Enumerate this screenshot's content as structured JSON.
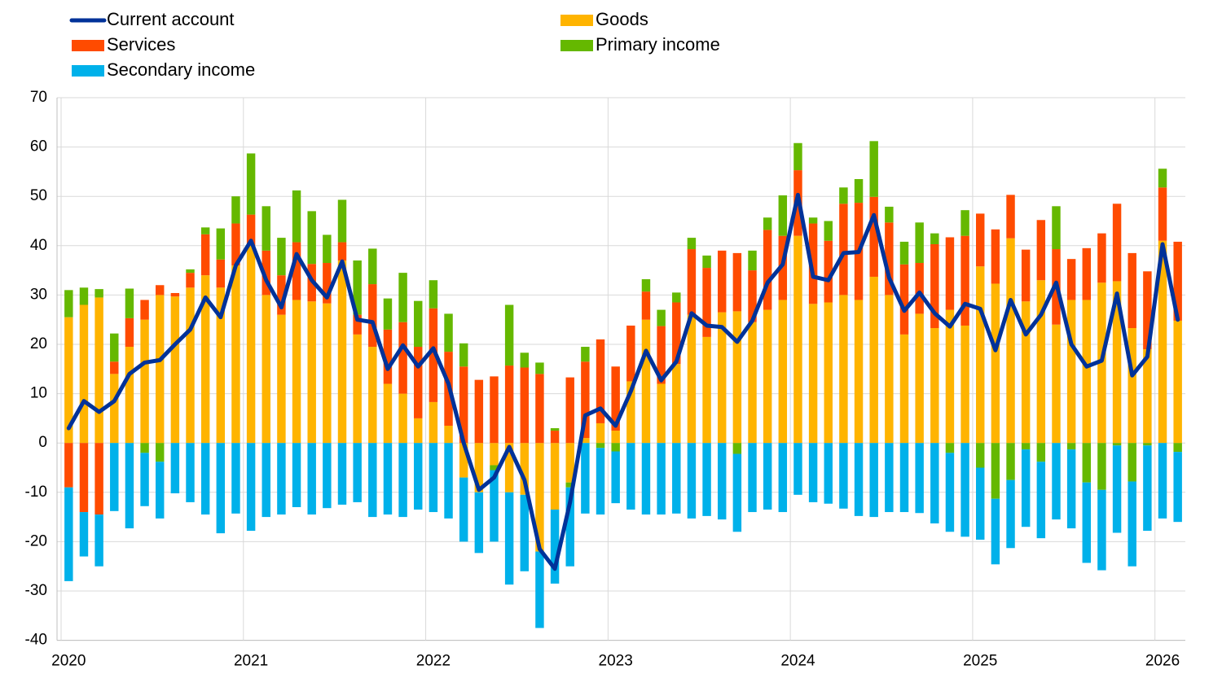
{
  "chart_data": {
    "type": "bar",
    "stacked": true,
    "categories": [
      "2020",
      null,
      null,
      null,
      null,
      null,
      null,
      null,
      null,
      null,
      null,
      null,
      "2021",
      null,
      null,
      null,
      null,
      null,
      null,
      null,
      null,
      null,
      null,
      null,
      "2022",
      null,
      null,
      null,
      null,
      null,
      null,
      null,
      null,
      null,
      null,
      null,
      "2023",
      null,
      null,
      null,
      null,
      null,
      null,
      null,
      null,
      null,
      null,
      null,
      "2024",
      null,
      null,
      null,
      null,
      null,
      null,
      null,
      null,
      null,
      null,
      null,
      "2025",
      null,
      null,
      null,
      null,
      null,
      null,
      null,
      null,
      null,
      null,
      null,
      "2026",
      null
    ],
    "series": [
      {
        "name": "Current account",
        "type": "line",
        "color": "#003299",
        "values": [
          3,
          8.5,
          6.3,
          8.5,
          14,
          16.3,
          16.8,
          20,
          23,
          29.5,
          25.5,
          36,
          41,
          33,
          27.5,
          38.3,
          33,
          29.5,
          36.8,
          25,
          24.5,
          15,
          19.8,
          15.5,
          19.2,
          12,
          0,
          -9.5,
          -7,
          -0.8,
          -7.5,
          -21.5,
          -25.5,
          -12,
          5.6,
          7,
          3.5,
          10.5,
          18.7,
          12.7,
          16.5,
          26.3,
          23.8,
          23.5,
          20.5,
          24.8,
          32.5,
          36.2,
          50.3,
          33.7,
          33,
          38.5,
          38.7,
          46.2,
          33.5,
          26.8,
          30.5,
          26.3,
          23.6,
          28.2,
          27.2,
          18.8,
          29,
          22,
          26,
          32.5,
          20,
          15.5,
          16.7,
          30.3,
          13.7,
          17.5,
          40.3,
          25
        ]
      },
      {
        "name": "Goods",
        "type": "bar",
        "color": "#ffb400",
        "values": [
          25.5,
          28,
          29.5,
          14,
          19.5,
          25,
          30,
          29.7,
          31.5,
          34,
          31.5,
          36,
          40,
          30,
          26,
          29,
          28.7,
          28.3,
          37,
          22,
          19.5,
          12,
          10,
          5,
          8.3,
          3.5,
          -7,
          -10,
          -4.5,
          -10,
          -10.5,
          -22,
          -13.5,
          -8,
          1,
          4,
          2.5,
          12.5,
          25,
          12,
          16,
          26,
          21.5,
          26.5,
          26.7,
          24.5,
          27,
          29,
          42,
          28.2,
          28.5,
          30,
          29,
          33.7,
          30,
          22,
          26.2,
          23.3,
          27,
          23.8,
          35.8,
          32.3,
          41.5,
          28.7,
          33,
          24,
          29,
          29,
          32.5,
          32.8,
          23.3,
          19,
          41,
          24.8
        ]
      },
      {
        "name": "Services",
        "type": "bar",
        "color": "#ff4b00",
        "values": [
          -9,
          -14,
          -14.5,
          2.5,
          5.8,
          4,
          2,
          0.7,
          3,
          8.3,
          5.7,
          8.5,
          6.3,
          9,
          8,
          11.7,
          7.6,
          8.2,
          3.7,
          4,
          12.7,
          11,
          14.5,
          14.5,
          19,
          15,
          15.5,
          12.8,
          13.5,
          15.7,
          15.3,
          14,
          2.5,
          13.3,
          15.5,
          17,
          13,
          11.3,
          5.7,
          11.7,
          12.5,
          13.3,
          14,
          12.5,
          11.8,
          10.5,
          16.2,
          13,
          13.3,
          16.3,
          12.5,
          18.5,
          19.7,
          16.2,
          14.7,
          14.2,
          10.3,
          17,
          14.7,
          18.2,
          10.7,
          11,
          8.8,
          10.5,
          12.2,
          15.3,
          8.3,
          10.5,
          10,
          15.7,
          15.2,
          15.8,
          10.8,
          16
        ]
      },
      {
        "name": "Primary income",
        "type": "bar",
        "color": "#65b800",
        "values": [
          5.5,
          3.5,
          1.7,
          5.7,
          6,
          -2,
          -3.8,
          0,
          0.7,
          1.4,
          6.3,
          5.5,
          12.4,
          9,
          7.6,
          10.5,
          10.7,
          5.7,
          8.6,
          11,
          7.2,
          6.3,
          10,
          9.3,
          5.7,
          7.7,
          4.7,
          0,
          -1,
          12.3,
          3,
          2.3,
          0.5,
          -1,
          3,
          -1,
          -1.7,
          0,
          2.5,
          3.3,
          2,
          2.3,
          2.5,
          0,
          -2.2,
          4,
          2.5,
          8.2,
          5.5,
          1.2,
          4,
          3.3,
          4.8,
          11.3,
          3.2,
          4.6,
          8.2,
          2.2,
          -2,
          5.2,
          -5,
          -11.3,
          -7.5,
          -1.3,
          -3.8,
          8.7,
          -1.3,
          -8,
          -9.5,
          -0.5,
          -7.8,
          -0.5,
          3.8,
          -1.8
        ]
      },
      {
        "name": "Secondary income",
        "type": "bar",
        "color": "#00b1ea",
        "values": [
          -19,
          -9,
          -10.5,
          -13.8,
          -17.3,
          -10.8,
          -11.5,
          -10.2,
          -12,
          -14.5,
          -18.3,
          -14.3,
          -17.8,
          -15,
          -14.5,
          -13,
          -14.5,
          -13.2,
          -12.5,
          -12,
          -15,
          -14.5,
          -15,
          -13.5,
          -14,
          -15.3,
          -13,
          -12.3,
          -14.5,
          -18.7,
          -15.5,
          -15.5,
          -15,
          -16,
          -14.3,
          -13.5,
          -10.5,
          -13.5,
          -14.5,
          -14.5,
          -14.3,
          -15.3,
          -14.8,
          -15.5,
          -15.8,
          -14,
          -13.5,
          -14,
          -10.5,
          -12,
          -12.3,
          -13.3,
          -14.8,
          -15,
          -14,
          -14,
          -14.2,
          -16.3,
          -16,
          -19,
          -14.6,
          -13.3,
          -13.8,
          -15.7,
          -15.5,
          -15.5,
          -16,
          -16.3,
          -16.3,
          -17.7,
          -17.2,
          -17.3,
          -15.3,
          -14.2
        ]
      }
    ],
    "ylim": [
      -40,
      70
    ],
    "yticks": [
      -40,
      -30,
      -20,
      -10,
      0,
      10,
      20,
      30,
      40,
      50,
      60,
      70
    ],
    "grid": true
  }
}
